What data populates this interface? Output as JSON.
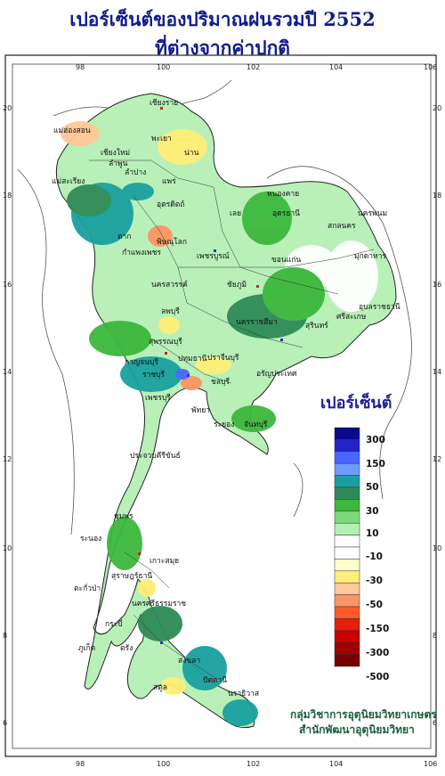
{
  "title": {
    "line1": "เปอร์เซ็นต์ของปริมาณฝนรวมปี 2552",
    "line2": "ที่ต่างจากค่าปกติ"
  },
  "axes": {
    "lon_ticks": [
      "98",
      "100",
      "102",
      "104",
      "106"
    ],
    "lat_ticks": [
      "20",
      "18",
      "16",
      "14",
      "12",
      "10",
      "8",
      "6"
    ]
  },
  "legend": {
    "title": "เปอร์เซ็นต์",
    "labels": [
      "300",
      "150",
      "50",
      "30",
      "10",
      "-10",
      "-30",
      "-50",
      "-150",
      "-300",
      "-500"
    ],
    "colors": [
      "#0a0a8c",
      "#2323c8",
      "#4a64ff",
      "#6e9bff",
      "#1aa0a0",
      "#2e8b57",
      "#3cb83c",
      "#7ed87e",
      "#b4f0b4",
      "#ffffff",
      "#ffffff",
      "#ffffc8",
      "#ffee78",
      "#ffc896",
      "#ff9464",
      "#ff5a28",
      "#e61e0a",
      "#c80000",
      "#a00000",
      "#780000"
    ]
  },
  "credit": {
    "line1": "กลุ่มวิชาการอุตุนิยมวิทยาเกษตร",
    "line2": "สำนักพัฒนาอุตุนิยมวิทยา"
  },
  "provinces": [
    {
      "name": "เชียงราย"
    },
    {
      "name": "แม่ฮ่องสอน"
    },
    {
      "name": "พะเยา"
    },
    {
      "name": "เชียงใหม่"
    },
    {
      "name": "น่าน"
    },
    {
      "name": "ลำพูน"
    },
    {
      "name": "ลำปาง"
    },
    {
      "name": "แพร่"
    },
    {
      "name": "แม่สะเรียง"
    },
    {
      "name": "อุตรดิตถ์"
    },
    {
      "name": "หนองคาย"
    },
    {
      "name": "นครพนม"
    },
    {
      "name": "เลย"
    },
    {
      "name": "อุดรธานี"
    },
    {
      "name": "สกลนคร"
    },
    {
      "name": "ตาก"
    },
    {
      "name": "พิษณุโลก"
    },
    {
      "name": "มุกดาหาร"
    },
    {
      "name": "กำแพงเพชร"
    },
    {
      "name": "เพชรบูรณ์"
    },
    {
      "name": "ขอนแก่น"
    },
    {
      "name": "นครสวรรค์"
    },
    {
      "name": "ชัยภูมิ"
    },
    {
      "name": "อุบลราชธานี"
    },
    {
      "name": "ศรีสะเกษ"
    },
    {
      "name": "ลพบุรี"
    },
    {
      "name": "นครราชสีมา"
    },
    {
      "name": "สุรินทร์"
    },
    {
      "name": "สุพรรณบุรี"
    },
    {
      "name": "กาญจนบุรี"
    },
    {
      "name": "ราชบุรี"
    },
    {
      "name": "ปทุมธานี"
    },
    {
      "name": "ปราจีนบุรี"
    },
    {
      "name": "อรัญประเทศ"
    },
    {
      "name": "ชลบุรี"
    },
    {
      "name": "เพชรบุรี"
    },
    {
      "name": "พัทยา"
    },
    {
      "name": "ระยอง"
    },
    {
      "name": "จันทบุรี"
    },
    {
      "name": "ประจวบคีรีขันธ์"
    },
    {
      "name": "ชุมพร"
    },
    {
      "name": "ระนอง"
    },
    {
      "name": "เกาะสมุย"
    },
    {
      "name": "สุราษฎร์ธานี"
    },
    {
      "name": "ตะกั่วป่า"
    },
    {
      "name": "นครศรีธรรมราช"
    },
    {
      "name": "ภูเก็ต"
    },
    {
      "name": "กระบี่"
    },
    {
      "name": "ตรัง"
    },
    {
      "name": "สงขลา"
    },
    {
      "name": "ปัตตานี"
    },
    {
      "name": "นราธิวาส"
    },
    {
      "name": "สตูล"
    }
  ]
}
